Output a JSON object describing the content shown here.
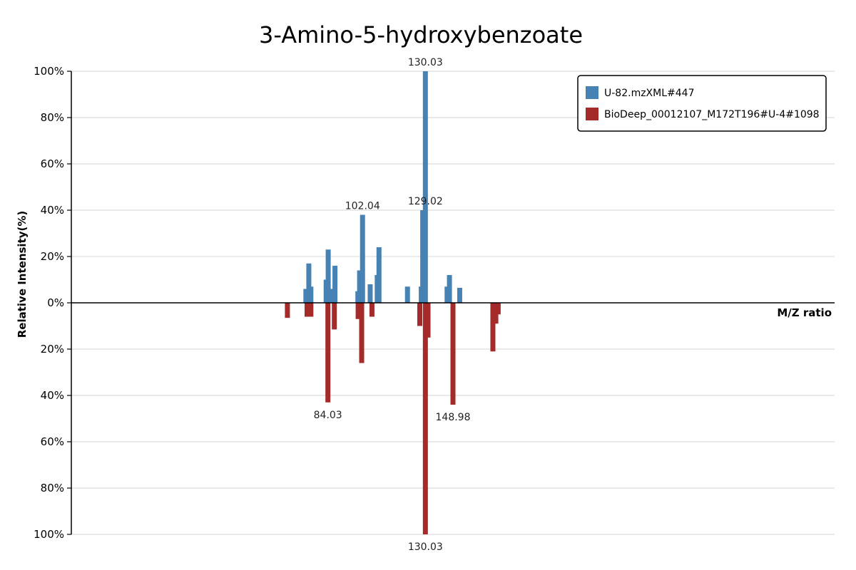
{
  "chart_data": {
    "type": "bar",
    "title": "3-Amino-5-hydroxybenzoate",
    "xlabel": "M/Z ratio",
    "ylabel": "Relative Intensity(%)",
    "xlim": [
      0,
      260
    ],
    "ylim": [
      -100,
      100
    ],
    "y_ticks": [
      {
        "value": 100,
        "label": "100%"
      },
      {
        "value": 80,
        "label": "80%"
      },
      {
        "value": 60,
        "label": "60%"
      },
      {
        "value": 40,
        "label": "40%"
      },
      {
        "value": 20,
        "label": "20%"
      },
      {
        "value": 0,
        "label": "0%"
      },
      {
        "value": -20,
        "label": "20%"
      },
      {
        "value": -40,
        "label": "40%"
      },
      {
        "value": -60,
        "label": "60%"
      },
      {
        "value": -80,
        "label": "80%"
      },
      {
        "value": -100,
        "label": "100%"
      }
    ],
    "grid": true,
    "legend_position": "top-right",
    "series": [
      {
        "name": "U-82.mzXML#447",
        "color": "#4682b4",
        "direction": "up",
        "peaks": [
          {
            "mz": 79.9,
            "intensity": 6
          },
          {
            "mz": 80.9,
            "intensity": 17
          },
          {
            "mz": 81.6,
            "intensity": 7
          },
          {
            "mz": 86.8,
            "intensity": 10
          },
          {
            "mz": 87.5,
            "intensity": 23
          },
          {
            "mz": 88.6,
            "intensity": 6
          },
          {
            "mz": 89.8,
            "intensity": 16
          },
          {
            "mz": 97.6,
            "intensity": 5
          },
          {
            "mz": 98.2,
            "intensity": 14
          },
          {
            "mz": 99.2,
            "intensity": 38
          },
          {
            "mz": 101.8,
            "intensity": 8
          },
          {
            "mz": 104.2,
            "intensity": 12
          },
          {
            "mz": 104.8,
            "intensity": 24
          },
          {
            "mz": 114.5,
            "intensity": 7
          },
          {
            "mz": 119.2,
            "intensity": 7
          },
          {
            "mz": 119.7,
            "intensity": 40
          },
          {
            "mz": 120.6,
            "intensity": 100
          },
          {
            "mz": 128.0,
            "intensity": 7
          },
          {
            "mz": 128.8,
            "intensity": 12
          },
          {
            "mz": 132.3,
            "intensity": 6.5
          }
        ],
        "labels": [
          {
            "mz": 99.2,
            "intensity": 38,
            "text": "102.04"
          },
          {
            "mz": 120.6,
            "intensity": 40,
            "text": "129.02"
          },
          {
            "mz": 120.6,
            "intensity": 100,
            "text": "130.03"
          }
        ]
      },
      {
        "name": "BioDeep_00012107_M172T196#U-4#1098",
        "color": "#a52a2a",
        "direction": "down",
        "peaks": [
          {
            "mz": 73.6,
            "intensity": 6.5
          },
          {
            "mz": 80.3,
            "intensity": 6
          },
          {
            "mz": 81.6,
            "intensity": 6
          },
          {
            "mz": 87.4,
            "intensity": 43
          },
          {
            "mz": 89.6,
            "intensity": 11.5
          },
          {
            "mz": 97.7,
            "intensity": 7
          },
          {
            "mz": 98.9,
            "intensity": 26
          },
          {
            "mz": 102.4,
            "intensity": 6
          },
          {
            "mz": 118.7,
            "intensity": 10
          },
          {
            "mz": 120.6,
            "intensity": 100
          },
          {
            "mz": 121.5,
            "intensity": 15
          },
          {
            "mz": 130.0,
            "intensity": 44
          },
          {
            "mz": 143.6,
            "intensity": 21
          },
          {
            "mz": 144.6,
            "intensity": 9
          },
          {
            "mz": 145.4,
            "intensity": 5
          }
        ],
        "labels": [
          {
            "mz": 87.4,
            "intensity": 43,
            "text": "84.03"
          },
          {
            "mz": 120.6,
            "intensity": 100,
            "text": "130.03"
          },
          {
            "mz": 130.0,
            "intensity": 44,
            "text": "148.98"
          }
        ]
      }
    ]
  }
}
